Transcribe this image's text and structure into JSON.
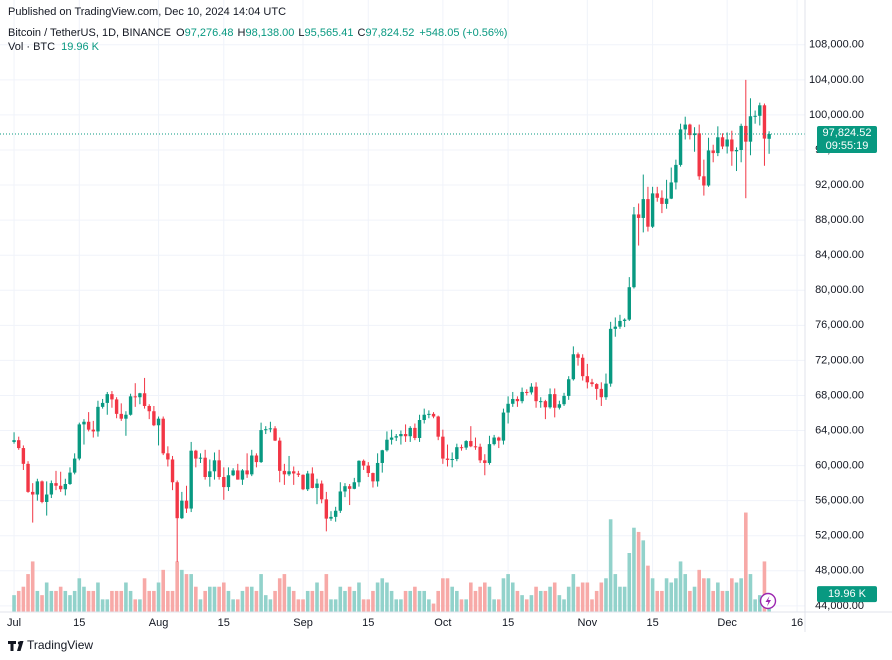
{
  "chart_data": {
    "type": "candlestick",
    "published": "Published on TradingView.com, Dec 10, 2024 14:04 UTC",
    "symbol": "Bitcoin / TetherUS, 1D, BINANCE",
    "ohlc_header": [
      {
        "key": "O",
        "value": "97,276.48"
      },
      {
        "key": "H",
        "value": "98,138.00"
      },
      {
        "key": "L",
        "value": "95,565.41"
      },
      {
        "key": "C",
        "value": "97,824.52"
      }
    ],
    "change": "+548.05 (+0.56%)",
    "volume_title": "Vol · BTC",
    "volume_header": "19.96 K",
    "last_price_label": "97,824.52",
    "countdown": "09:55:19",
    "volume_label": "19.96 K",
    "brand": "TradingView",
    "up_color": "#089981",
    "down_color": "#f23645",
    "up_volume_color": "#92d2cb",
    "down_volume_color": "#f7a9a7",
    "grid": true,
    "xlim": [
      -1.3,
      169.7
    ],
    "ylim": [
      43300,
      110600
    ],
    "volume_ylim": [
      0,
      700
    ],
    "yticks": [
      {
        "value": 44000,
        "label": "44,000.00"
      },
      {
        "value": 48000,
        "label": "48,000.00"
      },
      {
        "value": 52000,
        "label": "52,000.00"
      },
      {
        "value": 56000,
        "label": "56,000.00"
      },
      {
        "value": 60000,
        "label": "60,000.00"
      },
      {
        "value": 64000,
        "label": "64,000.00"
      },
      {
        "value": 68000,
        "label": "68,000.00"
      },
      {
        "value": 72000,
        "label": "72,000.00"
      },
      {
        "value": 76000,
        "label": "76,000.00"
      },
      {
        "value": 80000,
        "label": "80,000.00"
      },
      {
        "value": 84000,
        "label": "84,000.00"
      },
      {
        "value": 88000,
        "label": "88,000.00"
      },
      {
        "value": 92000,
        "label": "92,000.00"
      },
      {
        "value": 96000,
        "label": "96,000.00"
      },
      {
        "value": 100000,
        "label": "100,000.00"
      },
      {
        "value": 104000,
        "label": "104,000.00"
      },
      {
        "value": 108000,
        "label": "108,000.00"
      }
    ],
    "xticks": [
      {
        "value": 0,
        "label": "Jul"
      },
      {
        "value": 14,
        "label": "15"
      },
      {
        "value": 31,
        "label": "Aug"
      },
      {
        "value": 45,
        "label": "15"
      },
      {
        "value": 62,
        "label": "Sep"
      },
      {
        "value": 76,
        "label": "15"
      },
      {
        "value": 92,
        "label": "Oct"
      },
      {
        "value": 106,
        "label": "15"
      },
      {
        "value": 123,
        "label": "Nov"
      },
      {
        "value": 137,
        "label": "15"
      },
      {
        "value": 153,
        "label": "Dec"
      },
      {
        "value": 168,
        "label": "16"
      }
    ],
    "candles": [
      [
        62700,
        63800,
        62500,
        62900
      ],
      [
        62900,
        63300,
        61800,
        62000
      ],
      [
        62000,
        62300,
        59500,
        60200
      ],
      [
        60200,
        60500,
        56900,
        57000
      ],
      [
        57000,
        58000,
        53500,
        56700
      ],
      [
        56700,
        58500,
        56000,
        58200
      ],
      [
        58200,
        58300,
        55700,
        55850
      ],
      [
        55850,
        58200,
        54300,
        56700
      ],
      [
        56700,
        58300,
        56300,
        58000
      ],
      [
        58000,
        59400,
        57200,
        57700
      ],
      [
        57700,
        59300,
        57000,
        57300
      ],
      [
        57300,
        58500,
        56600,
        57900
      ],
      [
        57900,
        59800,
        57800,
        59200
      ],
      [
        59200,
        61400,
        59000,
        60800
      ],
      [
        60800,
        64900,
        60600,
        64700
      ],
      [
        64700,
        65300,
        62400,
        65000
      ],
      [
        65000,
        66100,
        63900,
        64100
      ],
      [
        64100,
        65100,
        63200,
        63900
      ],
      [
        63900,
        67400,
        63300,
        66700
      ],
      [
        66700,
        67600,
        66500,
        67150
      ],
      [
        67150,
        68400,
        65800,
        68150
      ],
      [
        68150,
        68500,
        66600,
        67550
      ],
      [
        67550,
        67800,
        65400,
        65900
      ],
      [
        65900,
        67100,
        65100,
        65350
      ],
      [
        65350,
        66200,
        63400,
        65800
      ],
      [
        65800,
        68200,
        65700,
        67900
      ],
      [
        67900,
        69400,
        66700,
        67800
      ],
      [
        67800,
        68300,
        67000,
        68250
      ],
      [
        68250,
        70000,
        66500,
        66800
      ],
      [
        66800,
        67000,
        65300,
        66200
      ],
      [
        66200,
        66800,
        64500,
        64600
      ],
      [
        64600,
        65600,
        62300,
        65350
      ],
      [
        65350,
        65600,
        61200,
        61400
      ],
      [
        61400,
        62200,
        59900,
        60700
      ],
      [
        60700,
        61100,
        57200,
        58100
      ],
      [
        58100,
        58300,
        49000,
        54000
      ],
      [
        54000,
        57000,
        53900,
        56000
      ],
      [
        56000,
        57700,
        54600,
        55100
      ],
      [
        55100,
        62700,
        54700,
        61700
      ],
      [
        61700,
        61800,
        59800,
        60800
      ],
      [
        60800,
        61400,
        60300,
        60900
      ],
      [
        60900,
        61800,
        58400,
        58700
      ],
      [
        58700,
        60700,
        57600,
        59350
      ],
      [
        59350,
        61500,
        58400,
        60600
      ],
      [
        60600,
        61800,
        58400,
        58700
      ],
      [
        58700,
        59800,
        56100,
        57550
      ],
      [
        57550,
        59800,
        57100,
        58900
      ],
      [
        58900,
        59700,
        58800,
        59450
      ],
      [
        59450,
        60200,
        58400,
        58400
      ],
      [
        58400,
        59600,
        57800,
        59450
      ],
      [
        59450,
        61400,
        58600,
        59000
      ],
      [
        59000,
        61800,
        58800,
        61150
      ],
      [
        61150,
        61400,
        59800,
        60400
      ],
      [
        60400,
        64900,
        60300,
        64050
      ],
      [
        64050,
        64500,
        63600,
        64150
      ],
      [
        64150,
        65000,
        63800,
        64250
      ],
      [
        64250,
        64500,
        62800,
        62850
      ],
      [
        62850,
        63200,
        58100,
        59400
      ],
      [
        59400,
        60200,
        57800,
        59000
      ],
      [
        59000,
        61100,
        58800,
        59350
      ],
      [
        59350,
        59900,
        57800,
        59100
      ],
      [
        59100,
        59400,
        58700,
        58950
      ],
      [
        58950,
        59000,
        57200,
        57300
      ],
      [
        57300,
        59400,
        57100,
        59100
      ],
      [
        59100,
        59800,
        57400,
        57450
      ],
      [
        57450,
        58500,
        55600,
        57950
      ],
      [
        57950,
        58300,
        55700,
        56150
      ],
      [
        56150,
        57000,
        52500,
        53950
      ],
      [
        53950,
        54800,
        53700,
        54150
      ],
      [
        54150,
        55300,
        53600,
        54850
      ],
      [
        54850,
        58100,
        54600,
        57050
      ],
      [
        57050,
        58000,
        56400,
        57650
      ],
      [
        57650,
        57900,
        55500,
        57350
      ],
      [
        57350,
        58600,
        57300,
        58100
      ],
      [
        58100,
        60600,
        57600,
        60550
      ],
      [
        60550,
        60700,
        59500,
        60000
      ],
      [
        60000,
        60400,
        58700,
        59150
      ],
      [
        59150,
        59200,
        57500,
        58200
      ],
      [
        58200,
        61400,
        57600,
        60300
      ],
      [
        60300,
        61800,
        59200,
        61750
      ],
      [
        61750,
        63900,
        61600,
        62950
      ],
      [
        62950,
        64100,
        62400,
        63200
      ],
      [
        63200,
        63600,
        62800,
        63350
      ],
      [
        63350,
        64000,
        62400,
        63600
      ],
      [
        63600,
        64700,
        62700,
        63350
      ],
      [
        63350,
        64500,
        62700,
        64300
      ],
      [
        64300,
        64800,
        62900,
        63150
      ],
      [
        63150,
        65800,
        62700,
        65200
      ],
      [
        65200,
        66500,
        64800,
        65800
      ],
      [
        65800,
        66300,
        65400,
        65900
      ],
      [
        65900,
        66100,
        65400,
        65600
      ],
      [
        65600,
        65700,
        62900,
        63300
      ],
      [
        63300,
        64100,
        60200,
        60800
      ],
      [
        60800,
        62400,
        59900,
        60650
      ],
      [
        60650,
        61500,
        59800,
        60750
      ],
      [
        60750,
        62500,
        60500,
        62100
      ],
      [
        62100,
        62400,
        61700,
        62050
      ],
      [
        62050,
        62900,
        61800,
        62800
      ],
      [
        62800,
        64500,
        62100,
        62200
      ],
      [
        62200,
        63200,
        61800,
        62150
      ],
      [
        62150,
        62500,
        60300,
        60600
      ],
      [
        60600,
        61300,
        58900,
        60300
      ],
      [
        60300,
        63400,
        60100,
        62450
      ],
      [
        62450,
        63500,
        62300,
        63200
      ],
      [
        63200,
        63300,
        62000,
        62850
      ],
      [
        62850,
        66500,
        62400,
        66050
      ],
      [
        66050,
        67900,
        64800,
        67050
      ],
      [
        67050,
        68400,
        66700,
        67600
      ],
      [
        67600,
        67900,
        66700,
        67350
      ],
      [
        67350,
        68900,
        67100,
        68400
      ],
      [
        68400,
        68700,
        68000,
        68350
      ],
      [
        68350,
        69400,
        68100,
        69000
      ],
      [
        69000,
        69500,
        66600,
        67350
      ],
      [
        67350,
        67800,
        66600,
        67350
      ],
      [
        67350,
        67500,
        65300,
        66650
      ],
      [
        66650,
        68800,
        66500,
        68150
      ],
      [
        68150,
        68800,
        65500,
        66600
      ],
      [
        66600,
        67400,
        66400,
        67000
      ],
      [
        67000,
        68300,
        66800,
        67950
      ],
      [
        67950,
        70200,
        67500,
        69850
      ],
      [
        69850,
        73600,
        69700,
        72700
      ],
      [
        72700,
        72900,
        71400,
        72300
      ],
      [
        72300,
        72700,
        69700,
        70200
      ],
      [
        70200,
        71600,
        68800,
        69500
      ],
      [
        69500,
        69900,
        69000,
        69300
      ],
      [
        69300,
        69400,
        67500,
        68750
      ],
      [
        68750,
        69500,
        66800,
        67800
      ],
      [
        67800,
        70500,
        67500,
        69350
      ],
      [
        69350,
        76400,
        69000,
        75600
      ],
      [
        75600,
        76900,
        74700,
        75850
      ],
      [
        75850,
        77200,
        75600,
        76500
      ],
      [
        76500,
        76800,
        75800,
        76650
      ],
      [
        76650,
        81500,
        76500,
        80350
      ],
      [
        80350,
        89500,
        80200,
        88650
      ],
      [
        88650,
        89900,
        85100,
        88250
      ],
      [
        88250,
        93200,
        86600,
        90400
      ],
      [
        90400,
        91800,
        86700,
        87250
      ],
      [
        87250,
        91800,
        87100,
        91050
      ],
      [
        91050,
        91800,
        90100,
        90550
      ],
      [
        90550,
        91400,
        88800,
        89850
      ],
      [
        89850,
        92600,
        89300,
        90450
      ],
      [
        90450,
        94000,
        90400,
        92300
      ],
      [
        92300,
        94900,
        91500,
        94300
      ],
      [
        94300,
        99000,
        94100,
        98350
      ],
      [
        98350,
        99800,
        97200,
        98900
      ],
      [
        98900,
        99000,
        97200,
        97700
      ],
      [
        97700,
        98600,
        95800,
        97900
      ],
      [
        97900,
        98900,
        92600,
        93000
      ],
      [
        93000,
        94900,
        90800,
        91950
      ],
      [
        91950,
        97400,
        91800,
        95950
      ],
      [
        95950,
        96600,
        94600,
        95650
      ],
      [
        95650,
        98700,
        95300,
        97450
      ],
      [
        97450,
        97900,
        96100,
        96400
      ],
      [
        96400,
        98000,
        95600,
        97200
      ],
      [
        97200,
        98200,
        94200,
        95850
      ],
      [
        95850,
        96300,
        93600,
        96000
      ],
      [
        96000,
        99000,
        94600,
        98750
      ],
      [
        98750,
        104000,
        90500,
        96950
      ],
      [
        96950,
        101900,
        95400,
        99850
      ],
      [
        99850,
        100500,
        99000,
        99900
      ],
      [
        99900,
        101400,
        98800,
        101100
      ],
      [
        101100,
        101300,
        94200,
        97300
      ],
      [
        97276.48,
        98138,
        95565.41,
        97824.52
      ]
    ],
    "volume": [
      20,
      25,
      30,
      45,
      60,
      25,
      20,
      35,
      25,
      25,
      30,
      25,
      20,
      25,
      40,
      30,
      25,
      25,
      35,
      15,
      15,
      25,
      25,
      25,
      35,
      25,
      15,
      15,
      40,
      25,
      25,
      35,
      50,
      25,
      25,
      60,
      50,
      45,
      45,
      30,
      15,
      25,
      30,
      30,
      30,
      35,
      25,
      15,
      15,
      25,
      30,
      30,
      25,
      45,
      20,
      15,
      25,
      40,
      45,
      30,
      25,
      15,
      15,
      25,
      25,
      35,
      25,
      45,
      15,
      15,
      30,
      25,
      30,
      25,
      35,
      15,
      15,
      25,
      35,
      40,
      35,
      25,
      15,
      15,
      25,
      25,
      30,
      25,
      25,
      15,
      10,
      25,
      40,
      40,
      30,
      25,
      15,
      15,
      35,
      25,
      30,
      35,
      30,
      15,
      15,
      40,
      45,
      35,
      25,
      20,
      15,
      20,
      30,
      25,
      25,
      30,
      35,
      20,
      15,
      30,
      45,
      30,
      35,
      35,
      15,
      25,
      35,
      40,
      110,
      45,
      30,
      30,
      70,
      100,
      95,
      85,
      55,
      40,
      25,
      25,
      40,
      35,
      40,
      60,
      45,
      25,
      30,
      50,
      40,
      40,
      25,
      35,
      25,
      25,
      40,
      35,
      40,
      118,
      45,
      15,
      20,
      60,
      19.96
    ]
  }
}
